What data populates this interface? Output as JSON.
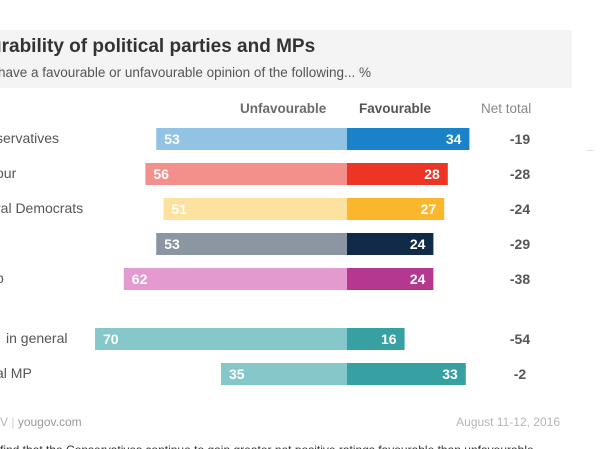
{
  "header": {
    "title": "urability of political parties and MPs",
    "subtitle": "have a favourable or unfavourable opinion of the following... %"
  },
  "columns": {
    "unfavourable": "Unfavourable",
    "favourable": "Favourable",
    "net": "Net total"
  },
  "footer": {
    "brand_mark": "V",
    "site": "yougov.com",
    "date": "August 11-12, 2016",
    "bottom_text": "find that the Conservatives continue to gain greater net positive ratings favourable than unfavourable"
  },
  "colors": {
    "net_text": "#555555",
    "label_text": "#555555",
    "header_unfav": "#6b6b6b",
    "header_fav": "#555555"
  },
  "chart_data": {
    "type": "bar",
    "title": "urability of political parties and MPs",
    "subtitle": "have a favourable or unfavourable opinion of the following... %",
    "categories": [
      "servatives",
      "our",
      "ral Democrats",
      "",
      "p",
      "in general",
      "al MP"
    ],
    "series": [
      {
        "name": "Unfavourable",
        "values": [
          53,
          56,
          51,
          53,
          62,
          70,
          35
        ]
      },
      {
        "name": "Favourable",
        "values": [
          34,
          28,
          27,
          24,
          24,
          16,
          33
        ]
      }
    ],
    "net_total": [
      "-19",
      "-28",
      "-24",
      "-29",
      "-38",
      "-54",
      "-2"
    ],
    "bar_colors": [
      {
        "unfav": "#92c3e5",
        "fav": "#1a82c8"
      },
      {
        "unfav": "#f3908c",
        "fav": "#ec3524"
      },
      {
        "unfav": "#fde29f",
        "fav": "#fbb72c"
      },
      {
        "unfav": "#8c96a3",
        "fav": "#102a47"
      },
      {
        "unfav": "#e39ace",
        "fav": "#b4388f"
      },
      {
        "unfav": "#86c7c9",
        "fav": "#36a0a3"
      },
      {
        "unfav": "#86c7c9",
        "fav": "#36a0a3"
      }
    ]
  }
}
